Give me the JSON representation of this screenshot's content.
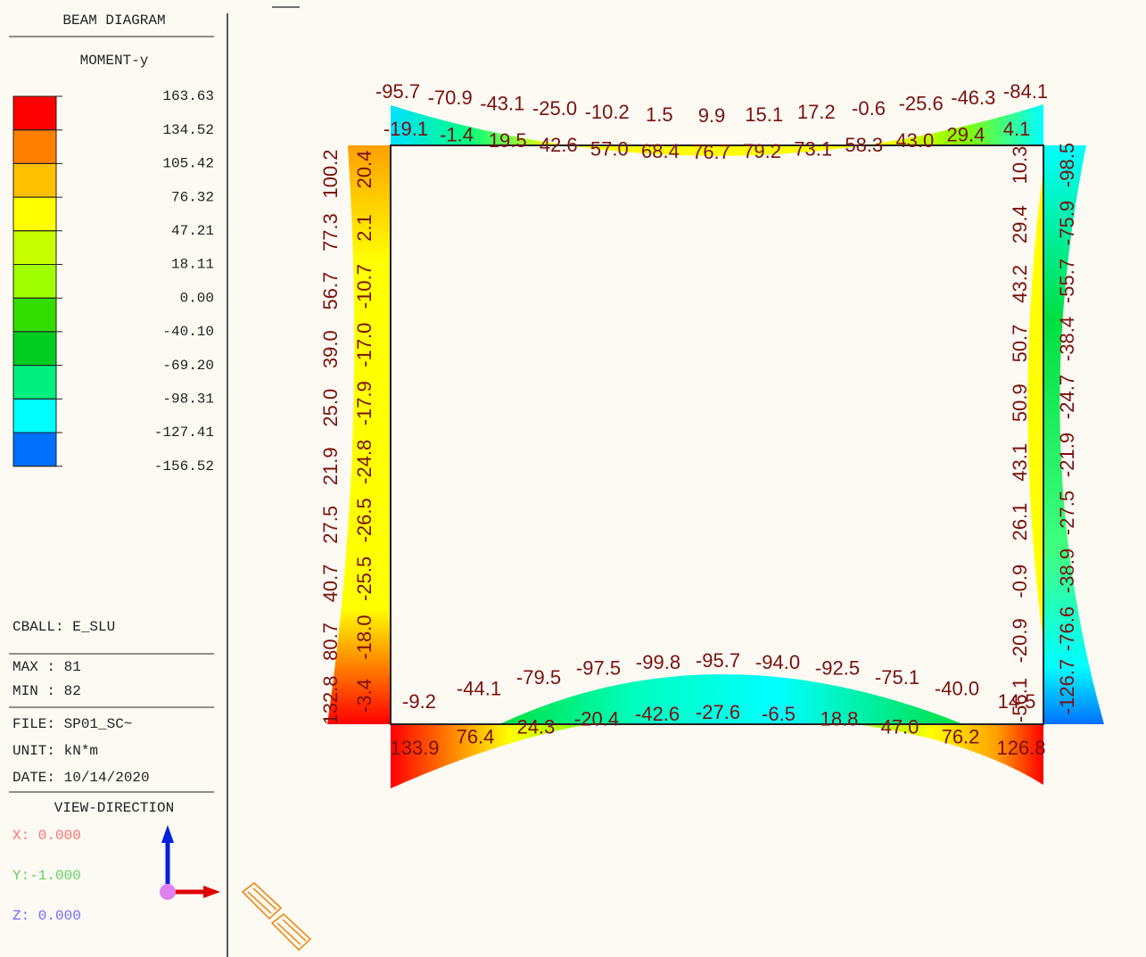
{
  "legend": {
    "title": "BEAM DIAGRAM",
    "subtitle": "MOMENT-y",
    "levels": [
      "163.63",
      "134.52",
      "105.42",
      "76.32",
      "47.21",
      "18.11",
      "0.00",
      "-40.10",
      "-69.20",
      "-98.31",
      "-127.41",
      "-156.52"
    ],
    "colors": [
      "#ff0000",
      "#ff8000",
      "#ffc000",
      "#ffff00",
      "#c8ff00",
      "#a0ff00",
      "#33dd00",
      "#00cc22",
      "#00f080",
      "#00ffff",
      "#0070ff"
    ]
  },
  "info": {
    "load_case": "CBALL: E_SLU",
    "max": "MAX : 81",
    "min": "MIN : 82",
    "file": "FILE: SP01_SC~",
    "unit": "UNIT: kN*m",
    "date": "DATE: 10/14/2020",
    "view_direction": "VIEW-DIRECTION",
    "x": "X: 0.000",
    "y": "Y:-1.000",
    "z": "Z: 0.000"
  },
  "members": {
    "top_beam": {
      "upper": [
        "-95.7",
        "-70.9",
        "-43.1",
        "-25.0",
        "-10.2",
        "1.5",
        "9.9",
        "15.1",
        "17.2",
        "-0.6",
        "-25.6",
        "-46.3",
        "-84.1"
      ],
      "lower": [
        "-19.1",
        "-1.4",
        "19.5",
        "42.6",
        "57.0",
        "68.4",
        "76.7",
        "79.2",
        "73.1",
        "58.3",
        "43.0",
        "29.4",
        "4.1"
      ]
    },
    "left_column": {
      "outer": [
        "132.8",
        "80.7",
        "40.7",
        "27.5",
        "21.9",
        "25.0",
        "39.0",
        "56.7",
        "77.3",
        "100.2"
      ],
      "inner": [
        "-3.4",
        "-18.0",
        "-25.5",
        "-26.5",
        "-24.8",
        "-17.9",
        "-17.0",
        "-10.7",
        "2.1",
        "20.4"
      ]
    },
    "right_column": {
      "inner": [
        "-56.1",
        "-20.9",
        "-0.9",
        "26.1",
        "43.1",
        "50.9",
        "50.7",
        "43.2",
        "29.4",
        "10.3"
      ],
      "outer": [
        "-126.7",
        "-76.6",
        "-38.9",
        "-27.5",
        "-21.9",
        "-24.7",
        "-38.4",
        "-55.7",
        "-75.9",
        "-98.5"
      ]
    },
    "bottom_beam": {
      "upper": [
        "-9.2",
        "-44.1",
        "-79.5",
        "-97.5",
        "-99.8",
        "-95.7",
        "-94.0",
        "-92.5",
        "-75.1",
        "-40.0",
        "14.5"
      ],
      "lower": [
        "133.9",
        "76.4",
        "24.3",
        "-20.4",
        "-42.6",
        "-27.6",
        "-6.5",
        "18.8",
        "47.0",
        "76.2",
        "126.8"
      ]
    }
  }
}
